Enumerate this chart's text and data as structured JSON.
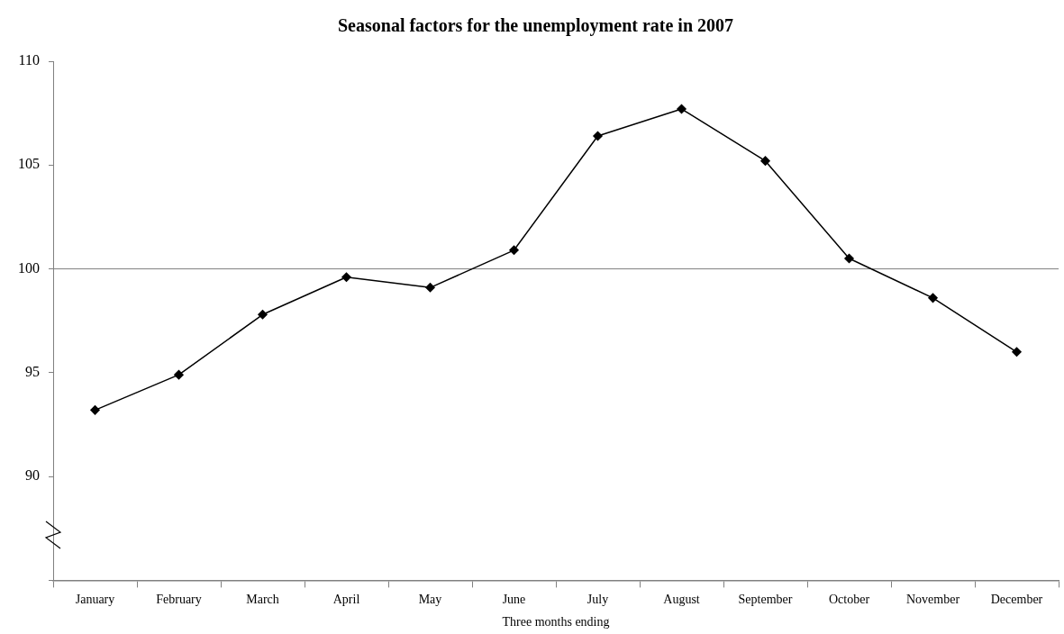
{
  "chart_data": {
    "type": "line",
    "title": "Seasonal factors for the unemployment rate in 2007",
    "xlabel": "Three months ending",
    "categories": [
      "January",
      "February",
      "March",
      "April",
      "May",
      "June",
      "July",
      "August",
      "September",
      "October",
      "November",
      "December"
    ],
    "series": [
      {
        "color": "#000000",
        "values": [
          93.2,
          94.9,
          97.8,
          99.6,
          99.1,
          100.9,
          106.4,
          107.7,
          105.2,
          100.5,
          98.6,
          96.0
        ]
      }
    ],
    "ylim": [
      85,
      110
    ],
    "yticks": [
      {
        "value": 85,
        "label": null
      },
      90,
      95,
      100,
      105,
      110
    ],
    "ref_lines": [
      {
        "axis": "y",
        "value": 100,
        "color": "#808080"
      }
    ],
    "grid": false,
    "legend": false,
    "marker": "diamond",
    "line_style": "solid"
  }
}
